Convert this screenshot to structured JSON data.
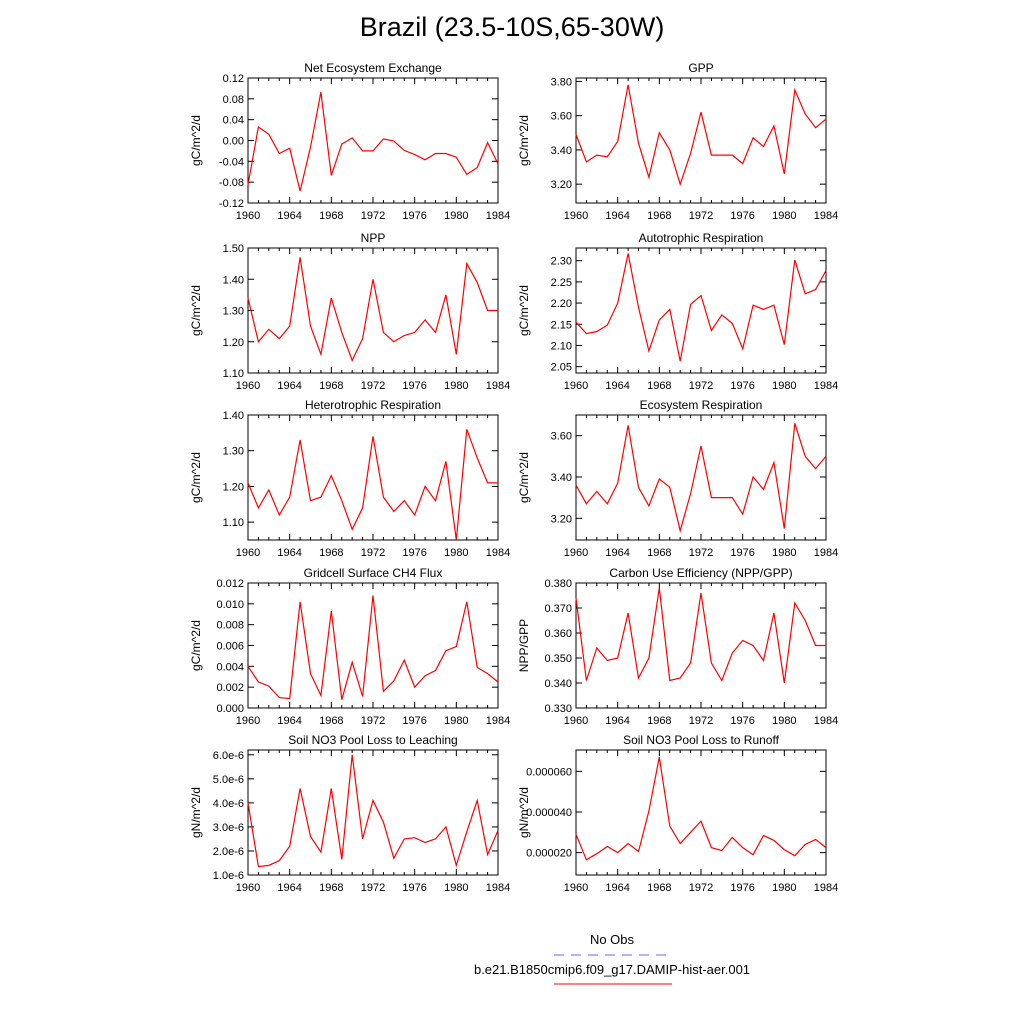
{
  "title": "Brazil (23.5-10S,65-30W)",
  "legend": [
    {
      "label": "No Obs",
      "color": "#6666ff",
      "dash": true
    },
    {
      "label": "b.e21.B1850cmip6.f09_g17.DAMIP-hist-aer.001",
      "color": "#ff0000",
      "dash": false
    }
  ],
  "chart_data": [
    {
      "type": "line",
      "title": "Net Ecosystem Exchange",
      "ylabel": "gC/m^2/d",
      "x": [
        1960,
        1961,
        1962,
        1963,
        1964,
        1965,
        1966,
        1967,
        1968,
        1969,
        1970,
        1971,
        1972,
        1973,
        1974,
        1975,
        1976,
        1977,
        1978,
        1979,
        1980,
        1981,
        1982,
        1983,
        1984
      ],
      "xticks": [
        "1960",
        "1964",
        "1968",
        "1972",
        "1976",
        "1980",
        "1984"
      ],
      "ylim": [
        -0.12,
        0.12
      ],
      "yticks": [
        "-0.12",
        "-0.08",
        "-0.04",
        "0.00",
        "0.04",
        "0.08",
        "0.12"
      ],
      "series": [
        {
          "color": "#ff0000",
          "values": [
            -0.085,
            0.026,
            0.012,
            -0.025,
            -0.015,
            -0.097,
            -0.013,
            0.093,
            -0.067,
            -0.007,
            0.005,
            -0.02,
            -0.02,
            0.003,
            -0.001,
            -0.019,
            -0.027,
            -0.037,
            -0.025,
            -0.025,
            -0.032,
            -0.065,
            -0.052,
            -0.004,
            -0.045
          ]
        }
      ]
    },
    {
      "type": "line",
      "title": "GPP",
      "ylabel": "gC/m^2/d",
      "x": [
        1960,
        1961,
        1962,
        1963,
        1964,
        1965,
        1966,
        1967,
        1968,
        1969,
        1970,
        1971,
        1972,
        1973,
        1974,
        1975,
        1976,
        1977,
        1978,
        1979,
        1980,
        1981,
        1982,
        1983,
        1984
      ],
      "xticks": [
        "1960",
        "1964",
        "1968",
        "1972",
        "1976",
        "1980",
        "1984"
      ],
      "ylim": [
        3.09,
        3.82
      ],
      "yticks": [
        "3.20",
        "3.40",
        "3.60",
        "3.80"
      ],
      "series": [
        {
          "color": "#ff0000",
          "values": [
            3.49,
            3.33,
            3.37,
            3.36,
            3.45,
            3.78,
            3.44,
            3.24,
            3.5,
            3.4,
            3.2,
            3.38,
            3.62,
            3.37,
            3.37,
            3.37,
            3.32,
            3.47,
            3.42,
            3.54,
            3.26,
            3.75,
            3.61,
            3.53,
            3.58
          ]
        }
      ]
    },
    {
      "type": "line",
      "title": "NPP",
      "ylabel": "gC/m^2/d",
      "x": [
        1960,
        1961,
        1962,
        1963,
        1964,
        1965,
        1966,
        1967,
        1968,
        1969,
        1970,
        1971,
        1972,
        1973,
        1974,
        1975,
        1976,
        1977,
        1978,
        1979,
        1980,
        1981,
        1982,
        1983,
        1984
      ],
      "xticks": [
        "1960",
        "1964",
        "1968",
        "1972",
        "1976",
        "1980",
        "1984"
      ],
      "ylim": [
        1.1,
        1.5
      ],
      "yticks": [
        "1.10",
        "1.20",
        "1.30",
        "1.40",
        "1.50"
      ],
      "series": [
        {
          "color": "#ff0000",
          "values": [
            1.34,
            1.2,
            1.24,
            1.21,
            1.25,
            1.47,
            1.25,
            1.16,
            1.34,
            1.23,
            1.14,
            1.21,
            1.4,
            1.23,
            1.2,
            1.22,
            1.23,
            1.27,
            1.23,
            1.35,
            1.16,
            1.45,
            1.39,
            1.3,
            1.3
          ]
        }
      ]
    },
    {
      "type": "line",
      "title": "Autotrophic Respiration",
      "ylabel": "gC/m^2/d",
      "x": [
        1960,
        1961,
        1962,
        1963,
        1964,
        1965,
        1966,
        1967,
        1968,
        1969,
        1970,
        1971,
        1972,
        1973,
        1974,
        1975,
        1976,
        1977,
        1978,
        1979,
        1980,
        1981,
        1982,
        1983,
        1984
      ],
      "xticks": [
        "1960",
        "1964",
        "1968",
        "1972",
        "1976",
        "1980",
        "1984"
      ],
      "ylim": [
        2.035,
        2.33
      ],
      "yticks": [
        "2.05",
        "2.10",
        "2.15",
        "2.20",
        "2.25",
        "2.30"
      ],
      "series": [
        {
          "color": "#ff0000",
          "values": [
            2.155,
            2.128,
            2.133,
            2.148,
            2.2,
            2.317,
            2.19,
            2.087,
            2.16,
            2.185,
            2.063,
            2.197,
            2.218,
            2.135,
            2.172,
            2.152,
            2.092,
            2.195,
            2.185,
            2.195,
            2.102,
            2.302,
            2.222,
            2.232,
            2.277
          ]
        }
      ]
    },
    {
      "type": "line",
      "title": "Heterotrophic Respiration",
      "ylabel": "gC/m^2/d",
      "x": [
        1960,
        1961,
        1962,
        1963,
        1964,
        1965,
        1966,
        1967,
        1968,
        1969,
        1970,
        1971,
        1972,
        1973,
        1974,
        1975,
        1976,
        1977,
        1978,
        1979,
        1980,
        1981,
        1982,
        1983,
        1984
      ],
      "xticks": [
        "1960",
        "1964",
        "1968",
        "1972",
        "1976",
        "1980",
        "1984"
      ],
      "ylim": [
        1.05,
        1.4
      ],
      "yticks": [
        "1.10",
        "1.20",
        "1.30",
        "1.40"
      ],
      "series": [
        {
          "color": "#ff0000",
          "values": [
            1.21,
            1.14,
            1.19,
            1.12,
            1.17,
            1.33,
            1.16,
            1.17,
            1.23,
            1.16,
            1.08,
            1.14,
            1.34,
            1.17,
            1.13,
            1.16,
            1.12,
            1.2,
            1.16,
            1.27,
            1.05,
            1.36,
            1.28,
            1.21,
            1.21
          ]
        }
      ]
    },
    {
      "type": "line",
      "title": "Ecosystem Respiration",
      "ylabel": "gC/m^2/d",
      "x": [
        1960,
        1961,
        1962,
        1963,
        1964,
        1965,
        1966,
        1967,
        1968,
        1969,
        1970,
        1971,
        1972,
        1973,
        1974,
        1975,
        1976,
        1977,
        1978,
        1979,
        1980,
        1981,
        1982,
        1983,
        1984
      ],
      "xticks": [
        "1960",
        "1964",
        "1968",
        "1972",
        "1976",
        "1980",
        "1984"
      ],
      "ylim": [
        3.095,
        3.7
      ],
      "yticks": [
        "3.20",
        "3.40",
        "3.60"
      ],
      "series": [
        {
          "color": "#ff0000",
          "values": [
            3.36,
            3.27,
            3.33,
            3.27,
            3.37,
            3.65,
            3.35,
            3.26,
            3.39,
            3.35,
            3.14,
            3.32,
            3.55,
            3.3,
            3.3,
            3.3,
            3.22,
            3.4,
            3.34,
            3.47,
            3.15,
            3.66,
            3.5,
            3.44,
            3.5
          ]
        }
      ]
    },
    {
      "type": "line",
      "title": "Gridcell Surface CH4 Flux",
      "ylabel": "gC/m^2/d",
      "x": [
        1960,
        1961,
        1962,
        1963,
        1964,
        1965,
        1966,
        1967,
        1968,
        1969,
        1970,
        1971,
        1972,
        1973,
        1974,
        1975,
        1976,
        1977,
        1978,
        1979,
        1980,
        1981,
        1982,
        1983,
        1984
      ],
      "xticks": [
        "1960",
        "1964",
        "1968",
        "1972",
        "1976",
        "1980",
        "1984"
      ],
      "ylim": [
        0.0,
        0.012
      ],
      "yticks": [
        "0.000",
        "0.002",
        "0.004",
        "0.006",
        "0.008",
        "0.010",
        "0.012"
      ],
      "series": [
        {
          "color": "#ff0000",
          "values": [
            0.004,
            0.0025,
            0.0021,
            0.001,
            0.0009,
            0.0102,
            0.0033,
            0.0012,
            0.0093,
            0.0008,
            0.0044,
            0.0011,
            0.0108,
            0.0016,
            0.0026,
            0.0046,
            0.002,
            0.0031,
            0.0036,
            0.0055,
            0.0059,
            0.0102,
            0.0039,
            0.0033,
            0.0025
          ]
        }
      ]
    },
    {
      "type": "line",
      "title": "Carbon Use Efficiency (NPP/GPP)",
      "ylabel": "NPP/GPP",
      "x": [
        1960,
        1961,
        1962,
        1963,
        1964,
        1965,
        1966,
        1967,
        1968,
        1969,
        1970,
        1971,
        1972,
        1973,
        1974,
        1975,
        1976,
        1977,
        1978,
        1979,
        1980,
        1981,
        1982,
        1983,
        1984
      ],
      "xticks": [
        "1960",
        "1964",
        "1968",
        "1972",
        "1976",
        "1980",
        "1984"
      ],
      "ylim": [
        0.33,
        0.38
      ],
      "yticks": [
        "0.330",
        "0.340",
        "0.350",
        "0.360",
        "0.370",
        "0.380"
      ],
      "series": [
        {
          "color": "#ff0000",
          "values": [
            0.374,
            0.341,
            0.354,
            0.349,
            0.35,
            0.368,
            0.342,
            0.35,
            0.378,
            0.341,
            0.342,
            0.348,
            0.376,
            0.348,
            0.341,
            0.352,
            0.357,
            0.355,
            0.349,
            0.368,
            0.34,
            0.372,
            0.365,
            0.355,
            0.355
          ]
        }
      ]
    },
    {
      "type": "line",
      "title": "Soil NO3 Pool Loss to Leaching",
      "ylabel": "gN/m^2/d",
      "x": [
        1960,
        1961,
        1962,
        1963,
        1964,
        1965,
        1966,
        1967,
        1968,
        1969,
        1970,
        1971,
        1972,
        1973,
        1974,
        1975,
        1976,
        1977,
        1978,
        1979,
        1980,
        1981,
        1982,
        1983,
        1984
      ],
      "xticks": [
        "1960",
        "1964",
        "1968",
        "1972",
        "1976",
        "1980",
        "1984"
      ],
      "ylim": [
        1e-06,
        6.2e-06
      ],
      "yticks": [
        "1.0e-6",
        "2.0e-6",
        "3.0e-6",
        "4.0e-6",
        "5.0e-6",
        "6.0e-6"
      ],
      "series": [
        {
          "color": "#ff0000",
          "values": [
            4e-06,
            1.35e-06,
            1.4e-06,
            1.6e-06,
            2.2e-06,
            4.6e-06,
            2.6e-06,
            1.95e-06,
            4.6e-06,
            1.65e-06,
            6e-06,
            2.5e-06,
            4.1e-06,
            3.2e-06,
            1.7e-06,
            2.5e-06,
            2.55e-06,
            2.35e-06,
            2.5e-06,
            3e-06,
            1.4e-06,
            2.8e-06,
            4.1e-06,
            1.85e-06,
            2.85e-06
          ]
        }
      ]
    },
    {
      "type": "line",
      "title": "Soil NO3 Pool Loss to Runoff",
      "ylabel": "gN/m^2/d",
      "x": [
        1960,
        1961,
        1962,
        1963,
        1964,
        1965,
        1966,
        1967,
        1968,
        1969,
        1970,
        1971,
        1972,
        1973,
        1974,
        1975,
        1976,
        1977,
        1978,
        1979,
        1980,
        1981,
        1982,
        1983,
        1984
      ],
      "xticks": [
        "1960",
        "1964",
        "1968",
        "1972",
        "1976",
        "1980",
        "1984"
      ],
      "ylim": [
        9e-06,
        7.05e-05
      ],
      "yticks": [
        "0.000020",
        "0.000040",
        "0.000060"
      ],
      "series": [
        {
          "color": "#ff0000",
          "values": [
            2.9e-05,
            1.65e-05,
            1.95e-05,
            2.3e-05,
            2e-05,
            2.45e-05,
            2.05e-05,
            4.05e-05,
            6.7e-05,
            3.3e-05,
            2.45e-05,
            3e-05,
            3.55e-05,
            2.25e-05,
            2.1e-05,
            2.75e-05,
            2.25e-05,
            1.9e-05,
            2.85e-05,
            2.6e-05,
            2.15e-05,
            1.85e-05,
            2.4e-05,
            2.65e-05,
            2.25e-05
          ]
        }
      ]
    }
  ]
}
